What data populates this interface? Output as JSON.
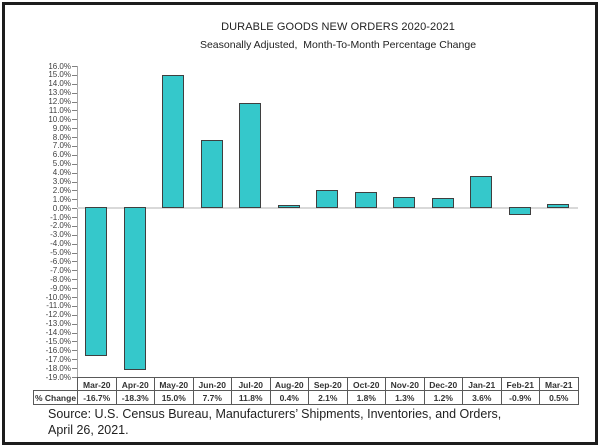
{
  "window": {
    "background": "#ffffff",
    "frame_border_color": "#1c1c1c"
  },
  "chart_data": {
    "type": "bar",
    "title": "DURABLE GOODS NEW ORDERS 2020-2021",
    "subtitle": "Seasonally Adjusted,  Month-To-Month Percentage Change",
    "categories": [
      "Mar-20",
      "Apr-20",
      "May-20",
      "Jun-20",
      "Jul-20",
      "Aug-20",
      "Sep-20",
      "Oct-20",
      "Nov-20",
      "Dec-20",
      "Jan-21",
      "Feb-21",
      "Mar-21"
    ],
    "series": [
      {
        "name": "% Change",
        "values": [
          -16.7,
          -18.3,
          15.0,
          7.7,
          11.8,
          0.4,
          2.1,
          1.8,
          1.3,
          1.2,
          3.6,
          -0.9,
          0.5
        ],
        "value_labels": [
          "-16.7%",
          "-18.3%",
          "15.0%",
          "7.7%",
          "11.8%",
          "0.4%",
          "2.1%",
          "1.8%",
          "1.3%",
          "1.2%",
          "3.6%",
          "-0.9%",
          "0.5%"
        ]
      }
    ],
    "ylim": [
      -19,
      16
    ],
    "ytick_step": 1,
    "ytick_labels": [
      "16.0%",
      "15.0%",
      "14.0%",
      "13.0%",
      "12.0%",
      "11.0%",
      "10.0%",
      "9.0%",
      "8.0%",
      "7.0%",
      "6.0%",
      "5.0%",
      "4.0%",
      "3.0%",
      "2.0%",
      "1.0%",
      "0.0%",
      "-1.0%",
      "-2.0%",
      "-3.0%",
      "-4.0%",
      "-5.0%",
      "-6.0%",
      "-7.0%",
      "-8.0%",
      "-9.0%",
      "-10.0%",
      "-11.0%",
      "-12.0%",
      "-13.0%",
      "-14.0%",
      "-15.0%",
      "-16.0%",
      "-17.0%",
      "-18.0%",
      "-19.0%"
    ],
    "grid": false,
    "legend": "none",
    "data_table_shown": true,
    "bar_color": "#35c8cb",
    "bar_border_color": "#3f3f3f",
    "zero_line_color": "#d9d9d9",
    "axis_color": "#a6a6a6",
    "tick_color": "#808080"
  },
  "source_note": {
    "line1": "Source: U.S. Census Bureau, Manufacturers’ Shipments, Inventories, and Orders,",
    "line2": "April 26, 2021."
  }
}
